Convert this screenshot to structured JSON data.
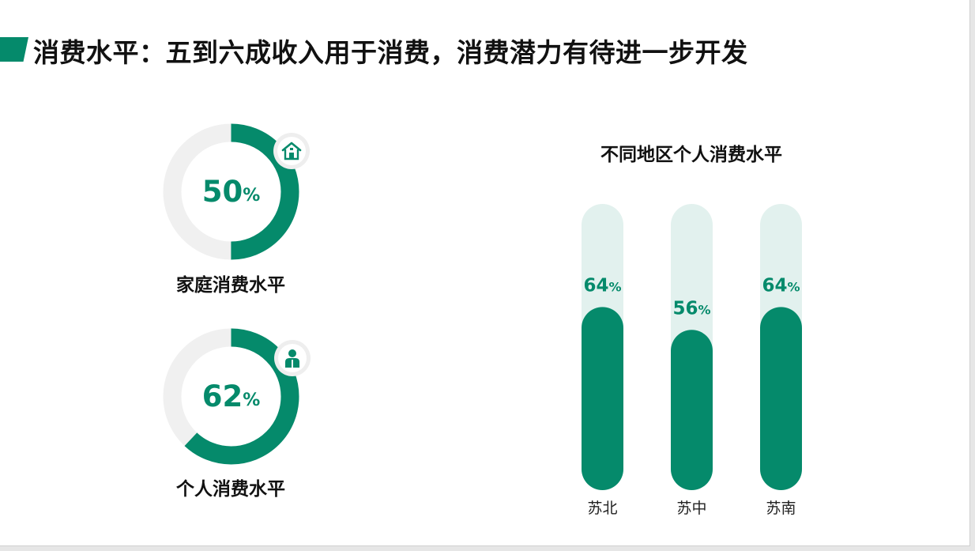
{
  "title": "消费水平：五到六成收入用于消费，消费潜力有待进一步开发",
  "colors": {
    "accent": "#058a6b",
    "track": "#f0f0f0",
    "bar_track": "#e2f1ee",
    "text": "#111111"
  },
  "donuts": [
    {
      "label": "家庭消费水平",
      "value_text": "50",
      "unit": "%",
      "fraction": 0.5,
      "icon": "house-icon"
    },
    {
      "label": "个人消费水平",
      "value_text": "62",
      "unit": "%",
      "fraction": 0.62,
      "icon": "person-icon"
    }
  ],
  "chart_data": {
    "type": "bar",
    "title": "不同地区个人消费水平",
    "categories": [
      "苏北",
      "苏中",
      "苏南"
    ],
    "values": [
      64,
      56,
      64
    ],
    "unit": "%",
    "ylim": [
      0,
      100
    ],
    "xlabel": "",
    "ylabel": "",
    "grid": false
  }
}
